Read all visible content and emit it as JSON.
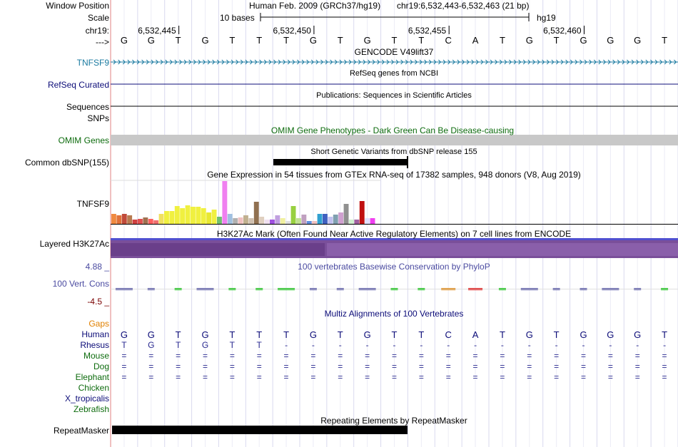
{
  "ruler": {
    "window_position_label": "Window Position",
    "scale_label": "Scale",
    "chrom_label": "chr19:",
    "strand_label": "--->",
    "assembly_title": "Human Feb. 2009 (GRCh37/hg19)",
    "position_text": "chr19:6,532,443-6,532,463 (21 bp)",
    "scale_text": "10 bases",
    "db_text": "hg19",
    "ticks": [
      "6,532,445",
      "6,532,450",
      "6,532,455",
      "6,532,460"
    ],
    "bases": [
      "G",
      "G",
      "T",
      "G",
      "T",
      "T",
      "T",
      "G",
      "T",
      "G",
      "T",
      "T",
      "C",
      "A",
      "T",
      "G",
      "T",
      "G",
      "G",
      "G",
      "T"
    ]
  },
  "tracks": {
    "gencode": {
      "title": "GENCODE V49lift37",
      "label": "TNFSF9"
    },
    "refseq": {
      "title": "RefSeq genes from NCBI",
      "label": "RefSeq Curated"
    },
    "publications": {
      "title": "Publications: Sequences in Scientific Articles",
      "label1": "Sequences",
      "label2": "SNPs"
    },
    "omim": {
      "title": "OMIM Gene Phenotypes - Dark Green Can Be Disease-causing",
      "label": "OMIM Genes"
    },
    "dbsnp": {
      "title": "Short Genetic Variants from dbSNP release 155",
      "label": "Common dbSNP(155)"
    },
    "gtex": {
      "title": "Gene Expression in 54 tissues from GTEx RNA-seq of 17382 samples, 948 donors (V8, Aug 2019)",
      "label": "TNFSF9"
    },
    "h3k27ac": {
      "title": "H3K27Ac Mark (Often Found Near Active Regulatory Elements) on 7 cell lines from ENCODE",
      "label": "Layered H3K27Ac"
    },
    "phylop": {
      "title": "100 vertebrates Basewise Conservation by PhyloP",
      "label": "100 Vert. Cons",
      "max": "4.88 _",
      "min": "-4.5 _"
    },
    "multiz": {
      "title": "Multiz Alignments of 100 Vertebrates",
      "gaps_label": "Gaps",
      "species": [
        {
          "name": "Human",
          "seq": [
            "G",
            "G",
            "T",
            "G",
            "T",
            "T",
            "T",
            "G",
            "T",
            "G",
            "T",
            "T",
            "C",
            "A",
            "T",
            "G",
            "T",
            "G",
            "G",
            "G",
            "T"
          ]
        },
        {
          "name": "Rhesus",
          "seq": [
            "T",
            "G",
            "T",
            "G",
            "T",
            "T",
            "-",
            "-",
            "-",
            "-",
            "-",
            "-",
            "-",
            "-",
            "-",
            "-",
            "-",
            "-",
            "-",
            "-",
            "-"
          ]
        },
        {
          "name": "Mouse",
          "seq": [
            "=",
            "=",
            "=",
            "=",
            "=",
            "=",
            "=",
            "=",
            "=",
            "=",
            "=",
            "=",
            "=",
            "=",
            "=",
            "=",
            "=",
            "=",
            "=",
            "=",
            "="
          ]
        },
        {
          "name": "Dog",
          "seq": [
            "=",
            "=",
            "=",
            "=",
            "=",
            "=",
            "=",
            "=",
            "=",
            "=",
            "=",
            "=",
            "=",
            "=",
            "=",
            "=",
            "=",
            "=",
            "=",
            "=",
            "="
          ]
        },
        {
          "name": "Elephant",
          "seq": [
            "=",
            "=",
            "=",
            "=",
            "=",
            "=",
            "=",
            "=",
            "=",
            "=",
            "=",
            "=",
            "=",
            "=",
            "=",
            "=",
            "=",
            "=",
            "=",
            "=",
            "="
          ]
        },
        {
          "name": "Chicken",
          "seq": []
        },
        {
          "name": "X_tropicalis",
          "seq": []
        },
        {
          "name": "Zebrafish",
          "seq": []
        }
      ]
    },
    "repeatmasker": {
      "title": "Repeating Elements by RepeatMasker",
      "label": "RepeatMasker"
    }
  },
  "colors": {
    "gencode": "#1a7aa0",
    "refseq": "#0c0c78",
    "omim": "#0d6b0d",
    "phylop": "#4a4aa0",
    "gaps": "#e08000",
    "human": "#0c0c78",
    "mammal": "#0d6b0d",
    "h3k27ac": "#7a4fb8"
  }
}
